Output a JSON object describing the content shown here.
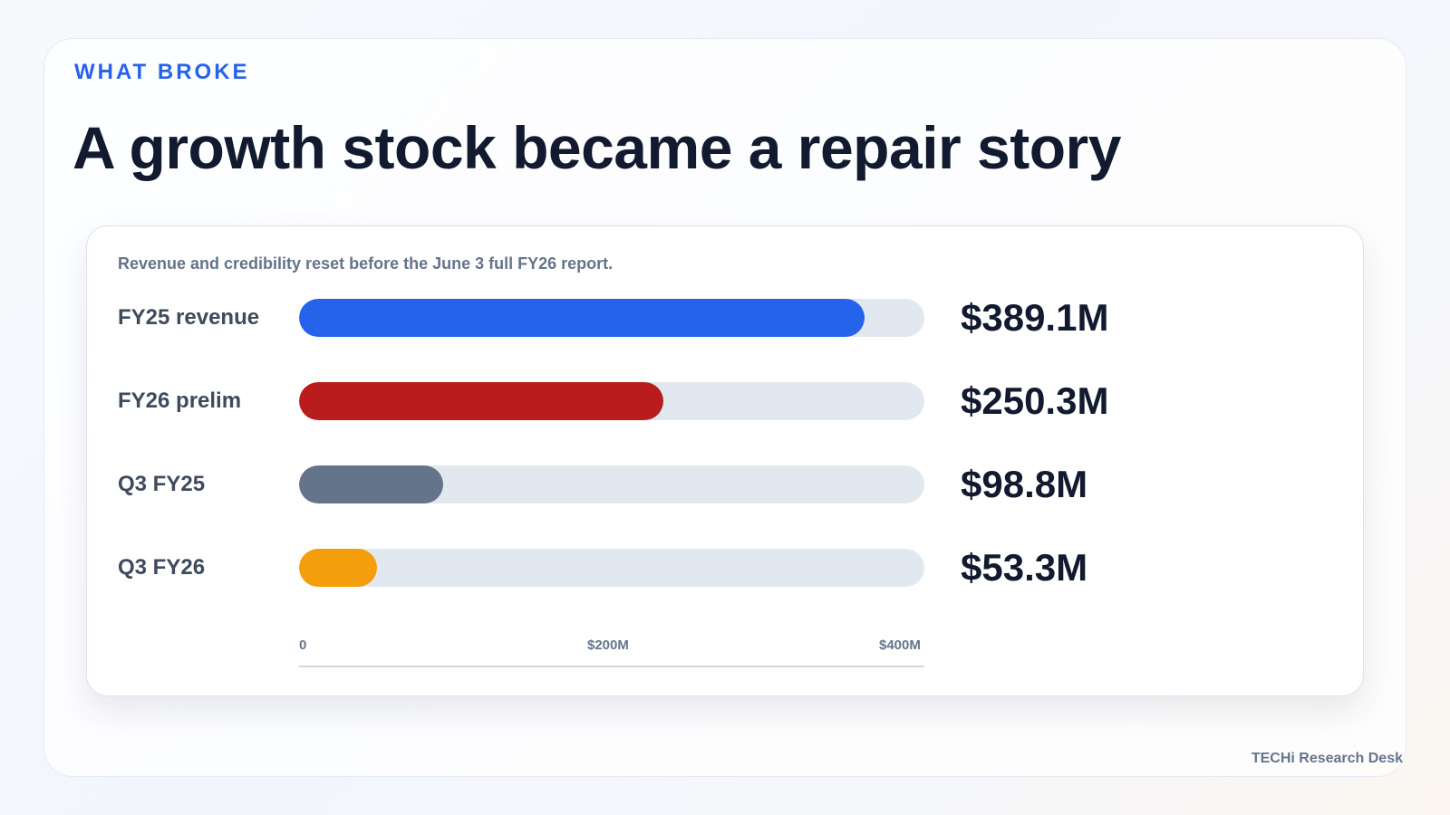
{
  "eyebrow": "WHAT BROKE",
  "headline": "A growth stock became a repair story",
  "footer": "TECHi Research Desk",
  "chart_data": {
    "type": "bar",
    "orientation": "horizontal",
    "title": "",
    "subtitle": "Revenue and credibility reset before the June 3 full FY26 report.",
    "categories": [
      "FY25 revenue",
      "FY26 prelim",
      "Q3 FY25",
      "Q3 FY26"
    ],
    "values": [
      389.1,
      250.3,
      98.8,
      53.3
    ],
    "value_labels": [
      "$389.1M",
      "$250.3M",
      "$98.8M",
      "$53.3M"
    ],
    "colors": [
      "#2563eb",
      "#b91c1c",
      "#64748b",
      "#f59e0b"
    ],
    "xlim": [
      0,
      430
    ],
    "ticks": [
      {
        "value": 0,
        "label": "0"
      },
      {
        "value": 200,
        "label": "$200M"
      },
      {
        "value": 400,
        "label": "$400M"
      }
    ],
    "xlabel": "",
    "ylabel": "",
    "grid": false,
    "legend": "none"
  }
}
